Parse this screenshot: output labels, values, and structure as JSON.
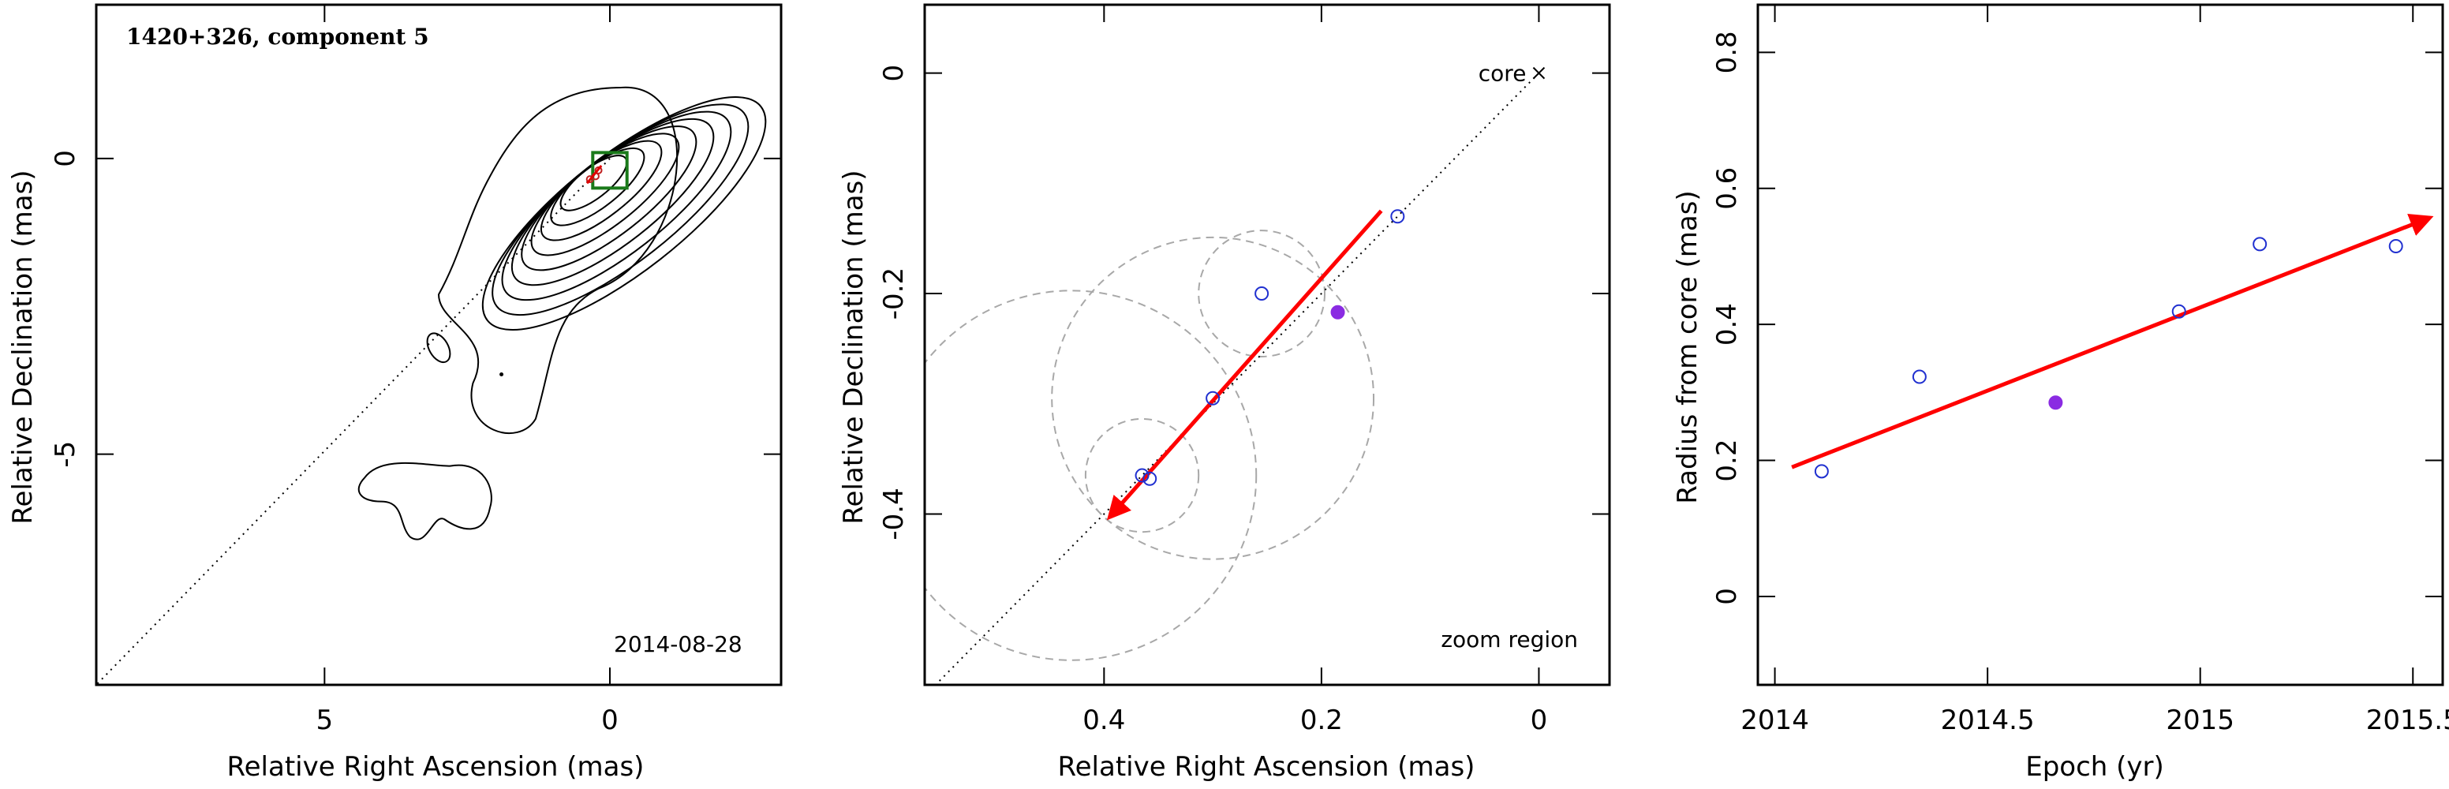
{
  "chart_data": [
    {
      "type": "contour",
      "title": "1420+326, component 5",
      "annotation": "2014-08-28",
      "xlabel": "Relative Right Ascension (mas)",
      "ylabel": "Relative Declination (mas)",
      "xlim": [
        9.0,
        -3.0
      ],
      "ylim": [
        -8.9,
        2.6
      ],
      "xticks": [
        5,
        0
      ],
      "yticks": [
        0,
        -5
      ],
      "core": [
        0,
        0
      ],
      "track_line": {
        "from": [
          0,
          0
        ],
        "to": [
          9.0,
          -8.9
        ]
      },
      "zoom_box": {
        "x": [
          -0.3,
          0.3
        ],
        "y": [
          -0.5,
          0.1
        ]
      },
      "component_marks": [
        {
          "x": 0.35,
          "y": -0.35
        },
        {
          "x": 0.2,
          "y": -0.2
        },
        {
          "x": 0.25,
          "y": -0.3
        }
      ],
      "contour_levels": 9,
      "islands": 3
    },
    {
      "type": "scatter",
      "xlabel": "Relative Right Ascension (mas)",
      "ylabel": "Relative Declination (mas)",
      "xlim": [
        0.565,
        -0.065
      ],
      "ylim": [
        -0.555,
        0.062
      ],
      "xticks": [
        0.4,
        0.2,
        0
      ],
      "yticks": [
        0,
        -0.2,
        -0.4
      ],
      "core_label": "core",
      "zoom_label": "zoom region",
      "points": [
        {
          "x": 0.13,
          "y": -0.13,
          "filled": false
        },
        {
          "x": 0.255,
          "y": -0.2,
          "filled": false
        },
        {
          "x": 0.185,
          "y": -0.217,
          "filled": true
        },
        {
          "x": 0.3,
          "y": -0.295,
          "filled": false
        },
        {
          "x": 0.365,
          "y": -0.365,
          "filled": false
        },
        {
          "x": 0.358,
          "y": -0.368,
          "filled": false
        }
      ],
      "circles": [
        {
          "x": 0.255,
          "y": -0.2,
          "r": 0.058
        },
        {
          "x": 0.3,
          "y": -0.295,
          "r": 0.148
        },
        {
          "x": 0.365,
          "y": -0.365,
          "r": 0.052
        },
        {
          "x": 0.43,
          "y": -0.365,
          "r": 0.17
        }
      ],
      "motion_arrow": {
        "from": [
          0.145,
          -0.125
        ],
        "to": [
          0.395,
          -0.403
        ]
      }
    },
    {
      "type": "scatter",
      "xlabel": "Epoch (yr)",
      "ylabel": "Radius from core (mas)",
      "xlim": [
        2013.96,
        2015.57
      ],
      "ylim": [
        -0.13,
        0.87
      ],
      "xticks": [
        "2014",
        "2014.5",
        "2015",
        "2015.5"
      ],
      "yticks": [
        "0",
        "0.2",
        "0.4",
        "0.6",
        "0.8"
      ],
      "points": [
        {
          "x": 2014.11,
          "y": 0.184,
          "filled": false
        },
        {
          "x": 2014.34,
          "y": 0.323,
          "filled": false
        },
        {
          "x": 2014.66,
          "y": 0.285,
          "filled": true
        },
        {
          "x": 2014.95,
          "y": 0.419,
          "filled": false
        },
        {
          "x": 2015.14,
          "y": 0.518,
          "filled": false
        },
        {
          "x": 2015.46,
          "y": 0.515,
          "filled": false
        }
      ],
      "fit_arrow": {
        "from": [
          2014.04,
          0.19
        ],
        "to": [
          2015.54,
          0.557
        ]
      }
    }
  ]
}
